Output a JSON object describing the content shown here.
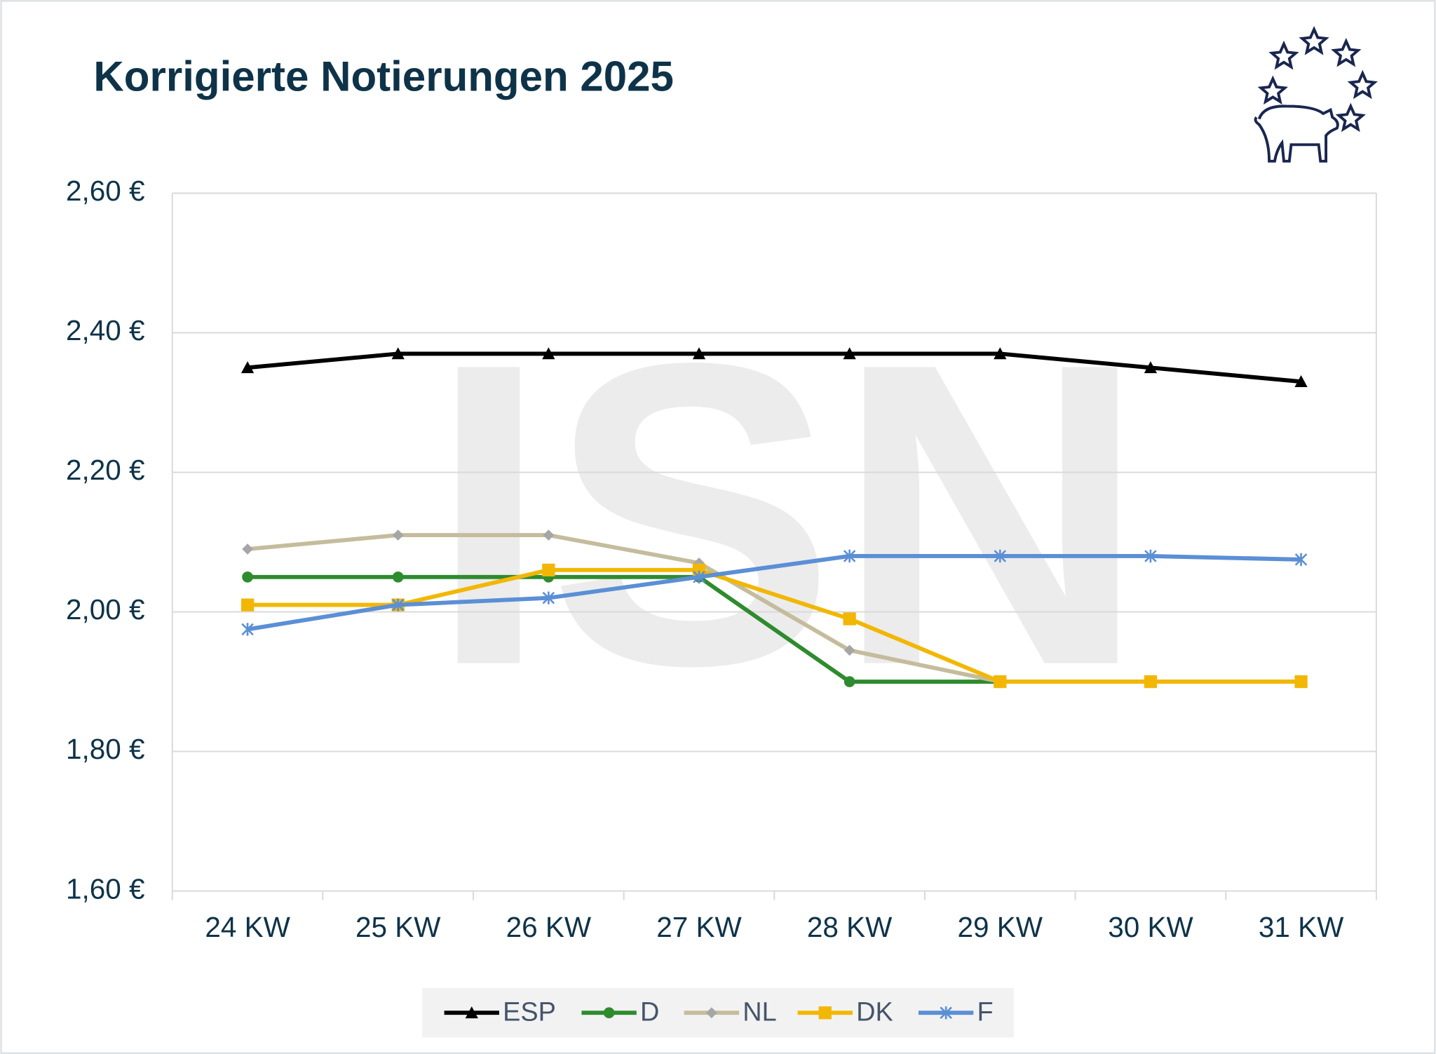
{
  "chart_data": {
    "type": "line",
    "title": "Korrigierte Notierungen 2025",
    "watermark": "ISN",
    "categories": [
      "24 KW",
      "25 KW",
      "26 KW",
      "27 KW",
      "28 KW",
      "29 KW",
      "30 KW",
      "31 KW"
    ],
    "series": [
      {
        "name": "ESP",
        "color": "#000000",
        "marker": "triangle",
        "values": [
          2.35,
          2.37,
          2.37,
          2.37,
          2.37,
          2.37,
          2.35,
          2.33
        ]
      },
      {
        "name": "D",
        "color": "#2e8b2e",
        "marker": "circle",
        "values": [
          2.05,
          2.05,
          2.05,
          2.05,
          1.9,
          1.9,
          1.9,
          1.9
        ]
      },
      {
        "name": "NL",
        "color": "#c4bc9c",
        "marker": "diamond",
        "values": [
          2.09,
          2.11,
          2.11,
          2.07,
          1.945,
          1.9,
          1.9,
          1.9
        ]
      },
      {
        "name": "DK",
        "color": "#f2b705",
        "marker": "square",
        "values": [
          2.01,
          2.01,
          2.06,
          2.06,
          1.99,
          1.9,
          1.9,
          1.9
        ]
      },
      {
        "name": "F",
        "color": "#5b8fd6",
        "marker": "asterisk",
        "values": [
          1.975,
          2.01,
          2.02,
          2.05,
          2.08,
          2.08,
          2.08,
          2.075
        ]
      }
    ],
    "ylim": [
      1.6,
      2.6
    ],
    "yticks": [
      {
        "value": 1.6,
        "label": "1,60 €"
      },
      {
        "value": 1.8,
        "label": "1,80 €"
      },
      {
        "value": 2.0,
        "label": "2,00 €"
      },
      {
        "value": 2.2,
        "label": "2,20 €"
      },
      {
        "value": 2.4,
        "label": "2,40 €"
      },
      {
        "value": 2.6,
        "label": "2,60 €"
      }
    ],
    "grid": true,
    "legend": "bottom"
  }
}
